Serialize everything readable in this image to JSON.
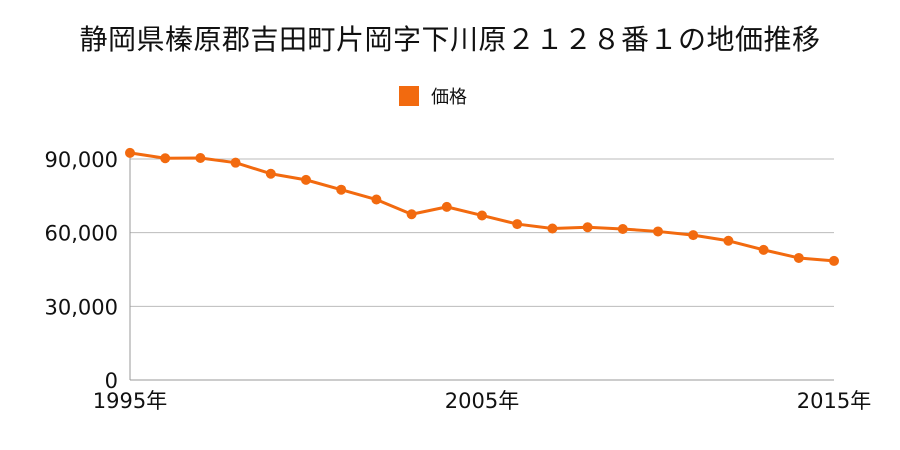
{
  "colors": {
    "series": "#f26a0f",
    "grid": "#bbbbbb",
    "axis": "#999999"
  },
  "chart_data": {
    "type": "line",
    "title": "静岡県榛原郡吉田町片岡字下川原２１２８番１の地価推移",
    "xlabel": "",
    "ylabel": "",
    "legend": {
      "position": "top-center",
      "label": "価格"
    },
    "grid": true,
    "x": [
      "1995年",
      "1996年",
      "1997年",
      "1998年",
      "1999年",
      "2000年",
      "2001年",
      "2002年",
      "2003年",
      "2004年",
      "2005年",
      "2006年",
      "2007年",
      "2008年",
      "2009年",
      "2010年",
      "2011年",
      "2012年",
      "2013年",
      "2014年",
      "2015年"
    ],
    "x_ticks": [
      "1995年",
      "2005年",
      "2015年"
    ],
    "series": [
      {
        "name": "価格",
        "values": [
          92500,
          90300,
          90400,
          88500,
          84000,
          81500,
          77500,
          73500,
          67500,
          70500,
          67000,
          63500,
          61700,
          62200,
          61500,
          60500,
          59000,
          56700,
          53000,
          49700,
          48500
        ]
      }
    ],
    "ylim": [
      0,
      90000
    ],
    "y_ticks": [
      {
        "value": 0,
        "label": "0"
      },
      {
        "value": 30000,
        "label": "30,000"
      },
      {
        "value": 60000,
        "label": "60,000"
      },
      {
        "value": 90000,
        "label": "90,000"
      }
    ]
  }
}
